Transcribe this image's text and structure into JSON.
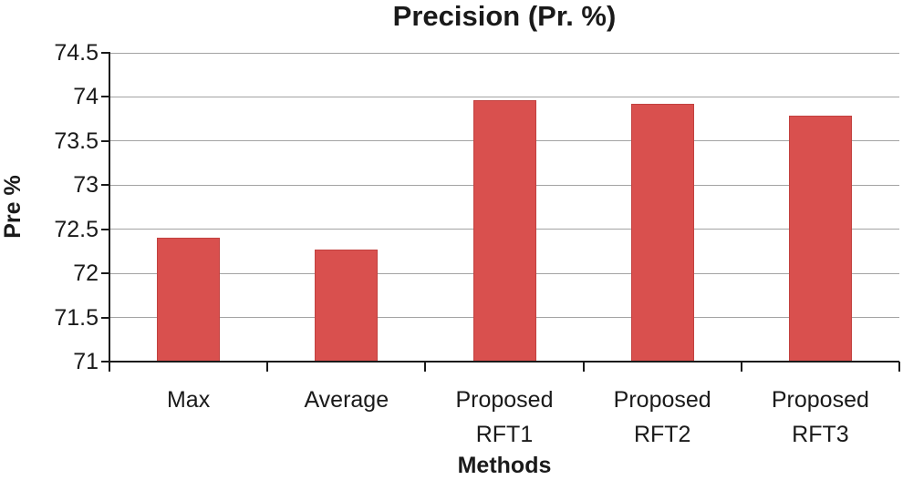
{
  "chart_data": {
    "type": "bar",
    "title": "Precision (Pr. %)",
    "xlabel": "Methods",
    "ylabel": "Pre %",
    "categories": [
      "Max",
      "Average",
      "Proposed RFT1",
      "Proposed RFT2",
      "Proposed RFT3"
    ],
    "category_label_lines": [
      [
        "Max"
      ],
      [
        "Average"
      ],
      [
        "Proposed",
        "RFT1"
      ],
      [
        "Proposed",
        "RFT2"
      ],
      [
        "Proposed",
        "RFT3"
      ]
    ],
    "values": [
      72.4,
      72.27,
      73.96,
      73.92,
      73.79
    ],
    "ylim": [
      71,
      74.5
    ],
    "ytick_step": 0.5,
    "ytick_labels": [
      "74.5",
      "74",
      "73.5",
      "73",
      "72.5",
      "72",
      "71.5",
      "71"
    ],
    "grid": true,
    "legend": "none",
    "colors": {
      "bar_fill": "#d9504e",
      "bar_border": "#c2413f",
      "gridline": "#a3a3a3",
      "axis": "#1a1a1a",
      "text": "#1a1a1a",
      "background": "#ffffff"
    }
  }
}
